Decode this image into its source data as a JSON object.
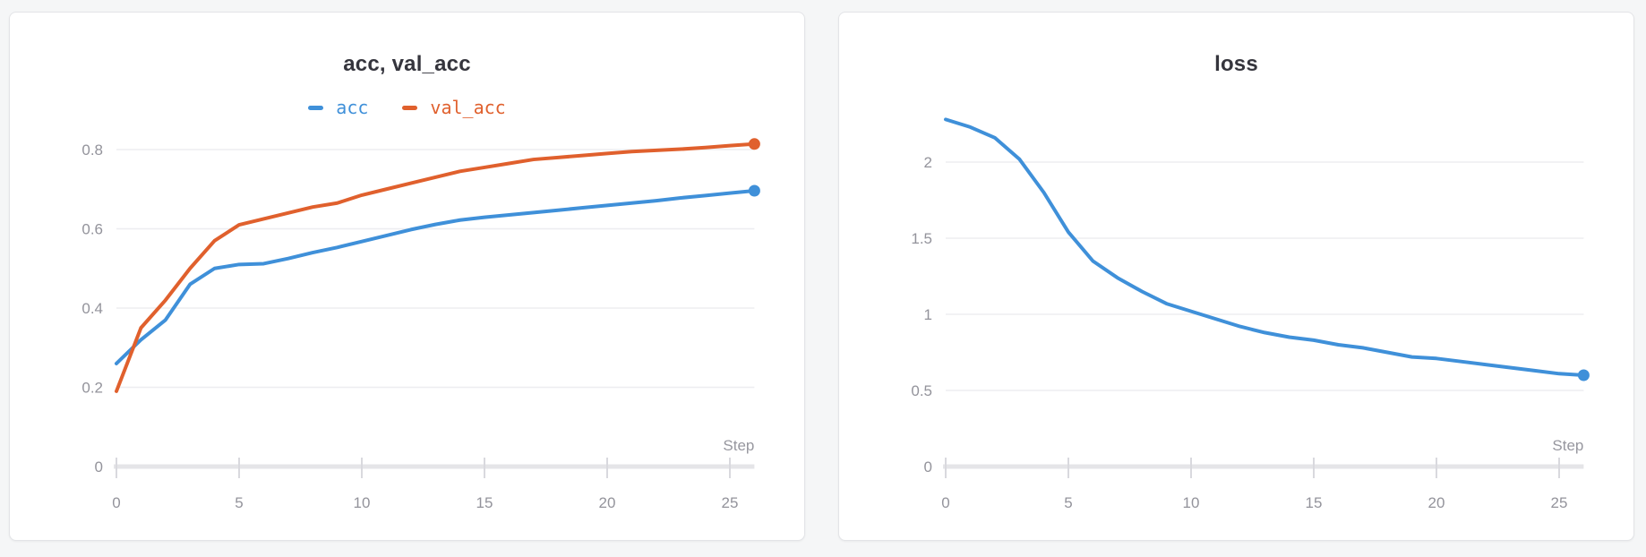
{
  "page": {
    "background": "#f5f6f7"
  },
  "chart_data": [
    {
      "type": "line",
      "title": "acc, val_acc",
      "xlabel": "Step",
      "x": [
        0,
        1,
        2,
        3,
        4,
        5,
        6,
        7,
        8,
        9,
        10,
        11,
        12,
        13,
        14,
        15,
        16,
        17,
        18,
        19,
        20,
        21,
        22,
        23,
        24,
        25,
        26
      ],
      "series": [
        {
          "name": "acc",
          "color": "#3f90d9",
          "values": [
            0.26,
            0.32,
            0.37,
            0.46,
            0.5,
            0.51,
            0.512,
            0.525,
            0.54,
            0.553,
            0.568,
            0.583,
            0.598,
            0.611,
            0.622,
            0.629,
            0.635,
            0.641,
            0.647,
            0.653,
            0.659,
            0.665,
            0.671,
            0.678,
            0.684,
            0.69,
            0.696
          ]
        },
        {
          "name": "val_acc",
          "color": "#e0602d",
          "values": [
            0.19,
            0.35,
            0.42,
            0.5,
            0.57,
            0.61,
            0.625,
            0.64,
            0.655,
            0.665,
            0.685,
            0.7,
            0.715,
            0.73,
            0.745,
            0.755,
            0.765,
            0.775,
            0.78,
            0.785,
            0.79,
            0.795,
            0.798,
            0.801,
            0.805,
            0.81,
            0.814
          ]
        }
      ],
      "xlim": [
        0,
        26
      ],
      "ylim": [
        0,
        0.9
      ],
      "xticks": [
        0,
        5,
        10,
        15,
        20,
        25
      ],
      "yticks": [
        0,
        0.2,
        0.4,
        0.6,
        0.8
      ],
      "ytick_labels": [
        "0",
        "0.2",
        "0.4",
        "0.6",
        "0.8"
      ],
      "grid": true,
      "legend_position": "top",
      "end_marker": true
    },
    {
      "type": "line",
      "title": "loss",
      "xlabel": "Step",
      "x": [
        0,
        1,
        2,
        3,
        4,
        5,
        6,
        7,
        8,
        9,
        10,
        11,
        12,
        13,
        14,
        15,
        16,
        17,
        18,
        19,
        20,
        21,
        22,
        23,
        24,
        25,
        26
      ],
      "series": [
        {
          "name": "loss",
          "color": "#3f90d9",
          "values": [
            2.28,
            2.23,
            2.16,
            2.02,
            1.8,
            1.54,
            1.35,
            1.24,
            1.15,
            1.07,
            1.02,
            0.97,
            0.92,
            0.88,
            0.85,
            0.83,
            0.8,
            0.78,
            0.75,
            0.72,
            0.71,
            0.69,
            0.67,
            0.65,
            0.63,
            0.61,
            0.6
          ]
        }
      ],
      "xlim": [
        0,
        26
      ],
      "ylim": [
        0,
        2.35
      ],
      "xticks": [
        0,
        5,
        10,
        15,
        20,
        25
      ],
      "yticks": [
        0,
        0.5,
        1,
        1.5,
        2
      ],
      "ytick_labels": [
        "0",
        "0.5",
        "1",
        "1.5",
        "2"
      ],
      "grid": true,
      "legend_position": "none",
      "end_marker": true
    }
  ],
  "theme": {
    "grid_color": "#ededf0",
    "axis_color": "#e5e5e8",
    "tick_mark_color": "#d9d9de",
    "tick_text_color": "#93939b",
    "axis_label_color": "#97979f",
    "title_color": "#35353d"
  }
}
